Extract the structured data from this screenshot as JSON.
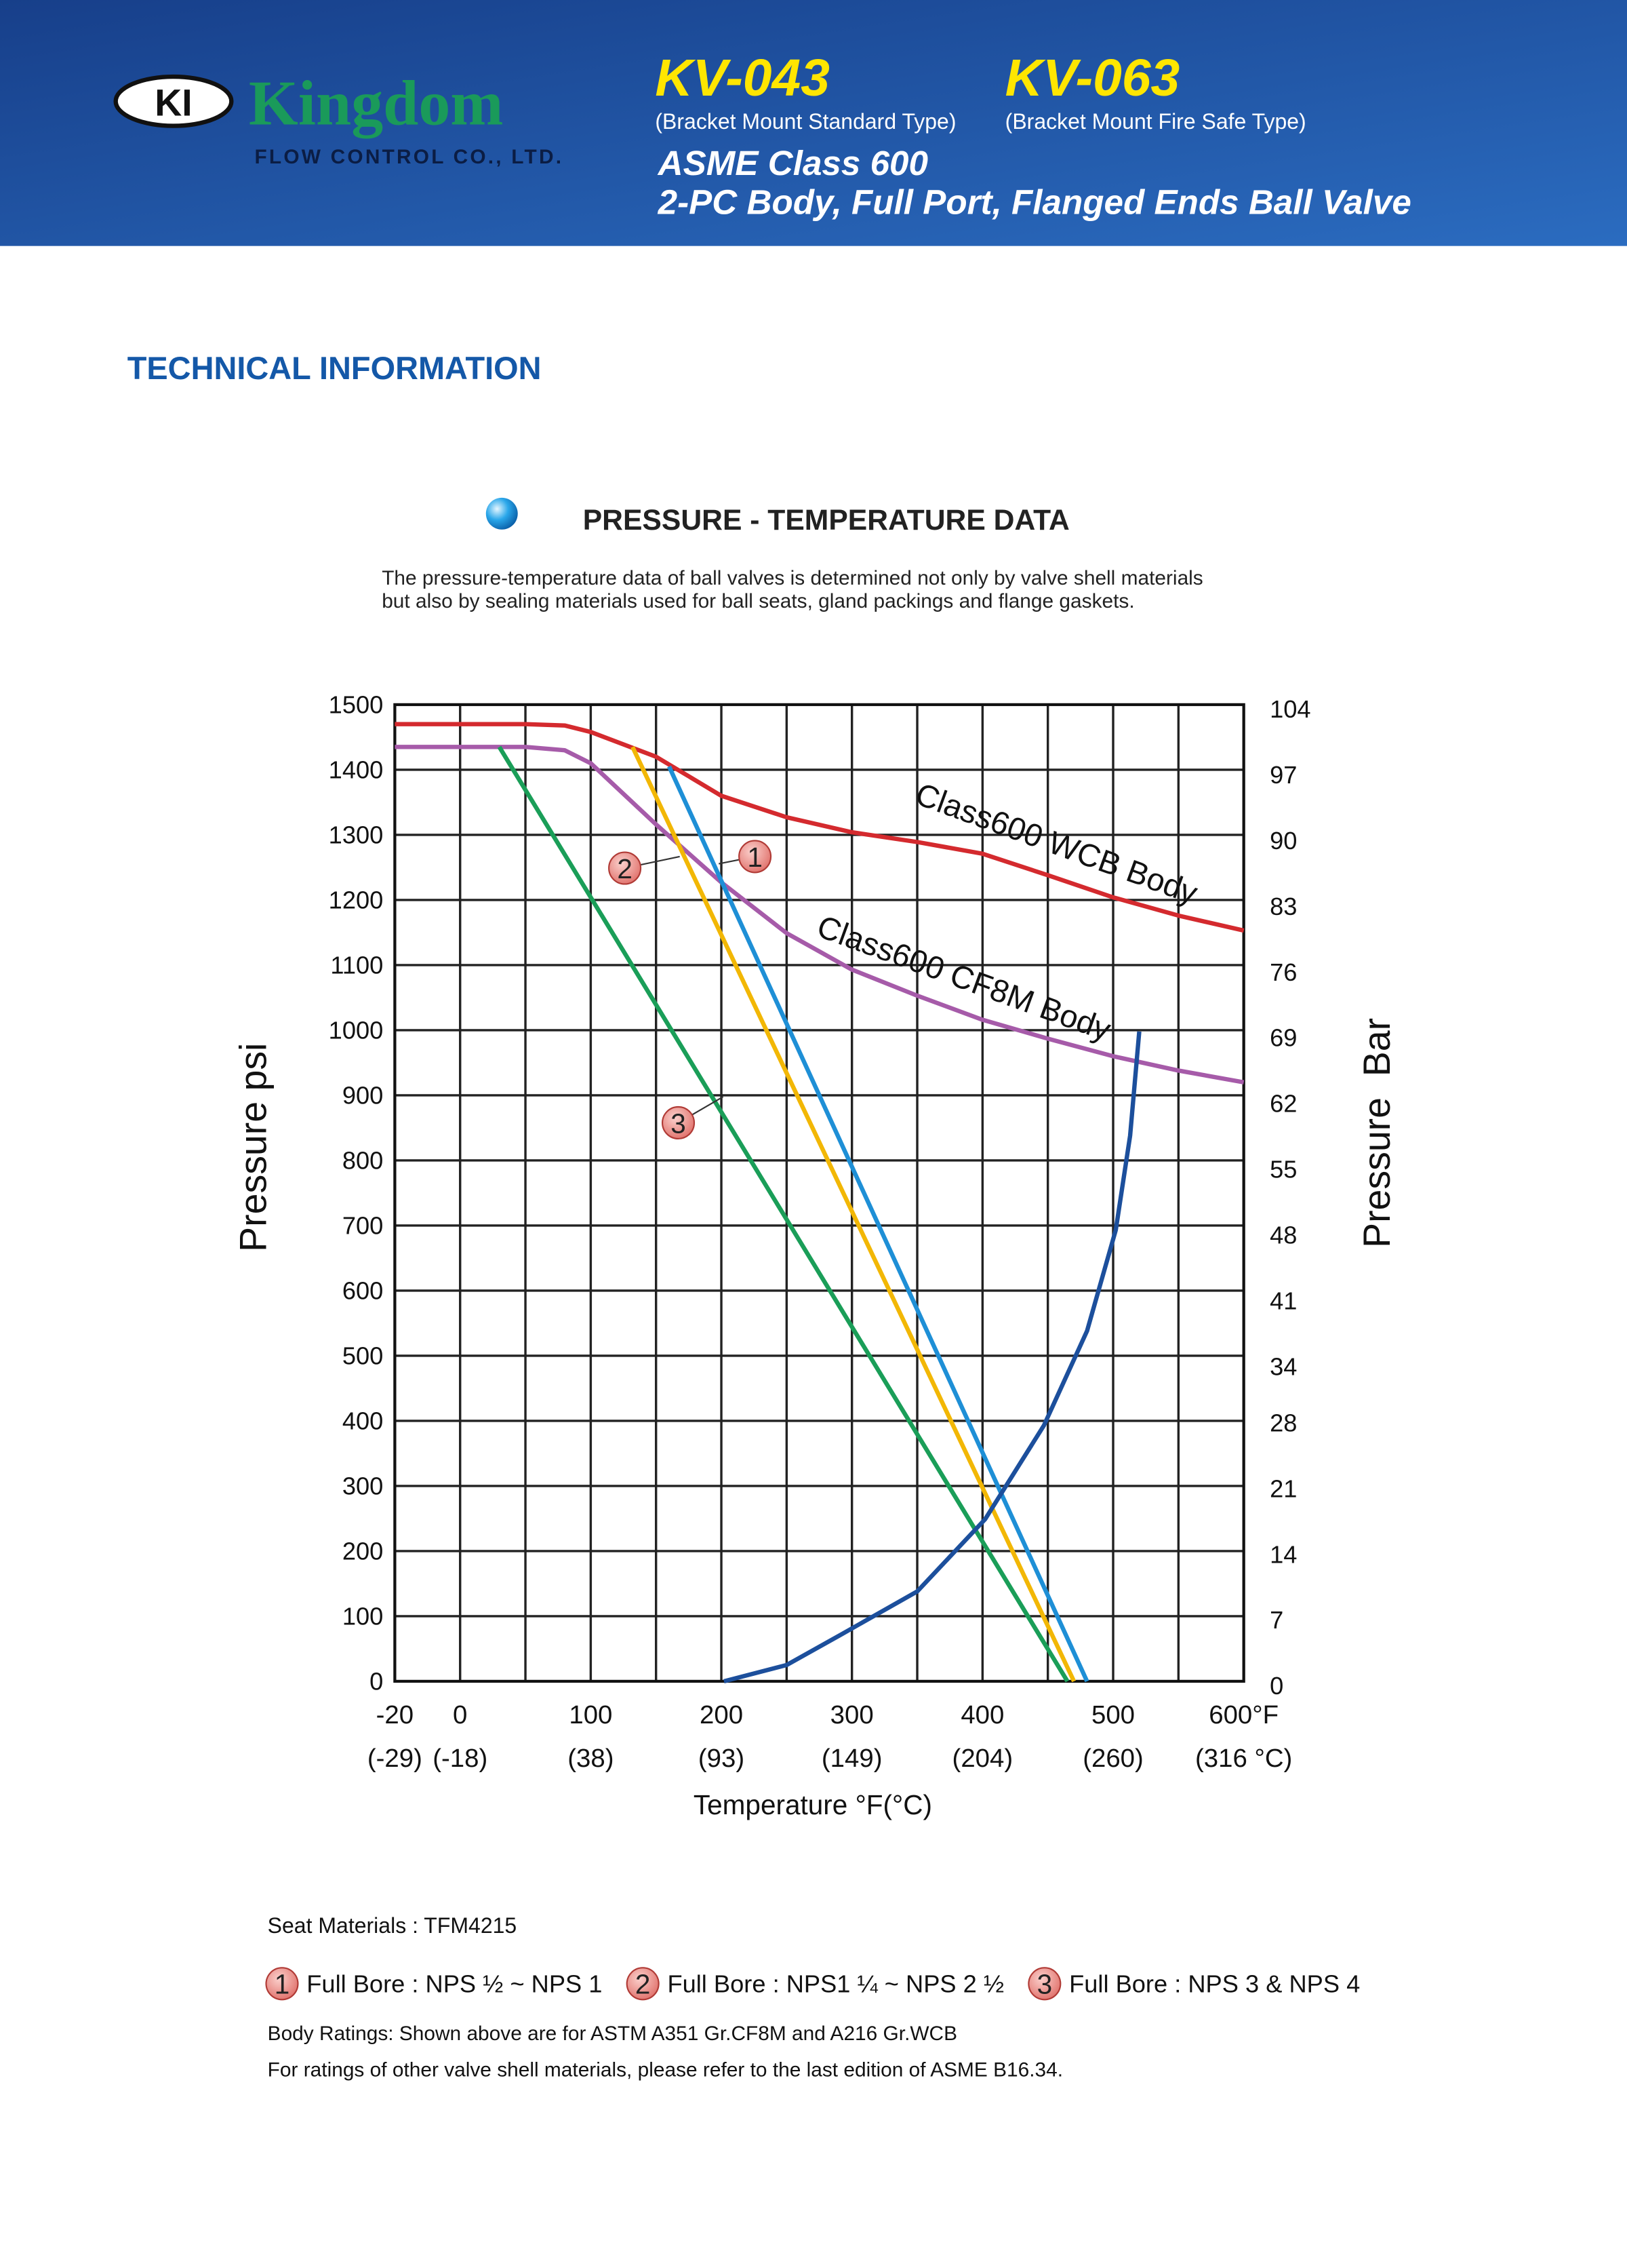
{
  "header": {
    "logo_mark": "KI",
    "brand": "Kingdom",
    "company": "FLOW CONTROL CO., LTD.",
    "models": [
      {
        "code": "KV-043",
        "type": "(Bracket Mount Standard Type)"
      },
      {
        "code": "KV-063",
        "type": "(Bracket Mount Fire Safe Type)"
      }
    ],
    "class": "ASME Class 600",
    "description": "2-PC Body, Full Port, Flanged Ends Ball Valve"
  },
  "section_title": "TECHNICAL INFORMATION",
  "chart_data": {
    "type": "line",
    "title": "PRESSURE - TEMPERATURE DATA",
    "subtitle": [
      "The pressure-temperature data of ball valves is determined not only by valve shell materials",
      "but also by sealing materials used for ball seats, gland packings and flange gaskets."
    ],
    "x_label": "Temperature °F(°C)",
    "y_label": "Pressure psi",
    "y2_label": "Pressure  Bar",
    "xlim": [
      -20,
      600
    ],
    "xgrid": [
      -20,
      0,
      50,
      100,
      150,
      200,
      250,
      300,
      350,
      400,
      450,
      500,
      550,
      600
    ],
    "xticks": [
      -20,
      0,
      100,
      200,
      300,
      400,
      500,
      {
        "value": 600,
        "label": "600°F"
      }
    ],
    "x2ticks": [
      {
        "value": -20,
        "label": "(-29)"
      },
      {
        "value": 0,
        "label": "(-18)"
      },
      {
        "value": 100,
        "label": "(38)"
      },
      {
        "value": 200,
        "label": "(93)"
      },
      {
        "value": 300,
        "label": "(149)"
      },
      {
        "value": 400,
        "label": "(204)"
      },
      {
        "value": 500,
        "label": "(260)"
      },
      {
        "value": 600,
        "label": "(316 °C)"
      }
    ],
    "ylim": [
      0,
      1500
    ],
    "yticks": [
      0,
      100,
      200,
      300,
      400,
      500,
      600,
      700,
      800,
      900,
      1000,
      1100,
      1200,
      1300,
      1400,
      1500
    ],
    "y2lim": [
      0,
      104
    ],
    "y2ticks": [
      0,
      7,
      14,
      21,
      28,
      34,
      41,
      48,
      55,
      62,
      69,
      76,
      83,
      90,
      97,
      104
    ],
    "grid": true,
    "series": [
      {
        "name": "Class600 WCB Body",
        "color": "#d42a2e",
        "x": [
          -20,
          0,
          50,
          80,
          100,
          150,
          200,
          250,
          300,
          350,
          400,
          450,
          500,
          550,
          600
        ],
        "values": [
          1470,
          1470,
          1470,
          1468,
          1458,
          1420,
          1360,
          1327,
          1304,
          1289,
          1271,
          1238,
          1204,
          1176,
          1153
        ]
      },
      {
        "name": "Class600 CF8M Body",
        "color": "#a65ba9",
        "x": [
          -20,
          0,
          50,
          80,
          100,
          150,
          200,
          250,
          300,
          350,
          400,
          450,
          500,
          550,
          600
        ],
        "values": [
          1435,
          1435,
          1435,
          1430,
          1410,
          1316,
          1227,
          1149,
          1093,
          1053,
          1016,
          987,
          960,
          938,
          920
        ]
      },
      {
        "name": "1",
        "legend_label": "Full Bore : NPS ½  ~ NPS 1",
        "color": "#1e8fd6",
        "x": [
          160,
          480
        ],
        "values": [
          1405,
          0
        ]
      },
      {
        "name": "2",
        "legend_label": "Full Bore : NPS1 ¼ ~ NPS 2 ½",
        "color": "#f2b705",
        "x": [
          132,
          470
        ],
        "values": [
          1435,
          0
        ]
      },
      {
        "name": "3",
        "legend_label": "Full Bore : NPS 3 & NPS 4",
        "color": "#1a9e58",
        "x": [
          30,
          465
        ],
        "values": [
          1435,
          0
        ]
      },
      {
        "color": "#1c4f9c",
        "x": [
          202,
          250,
          291,
          350,
          402,
          447,
          480,
          502,
          513,
          520
        ],
        "values": [
          0,
          25,
          71,
          138,
          249,
          393,
          538,
          693,
          838,
          998
        ]
      }
    ]
  },
  "notes": {
    "seat": "Seat Materials : TFM4215",
    "body": "Body Ratings: Shown above are for ASTM A351 Gr.CF8M and A216 Gr.WCB",
    "reference": "For ratings of other valve shell materials, please refer to the last edition of ASME B16.34."
  }
}
